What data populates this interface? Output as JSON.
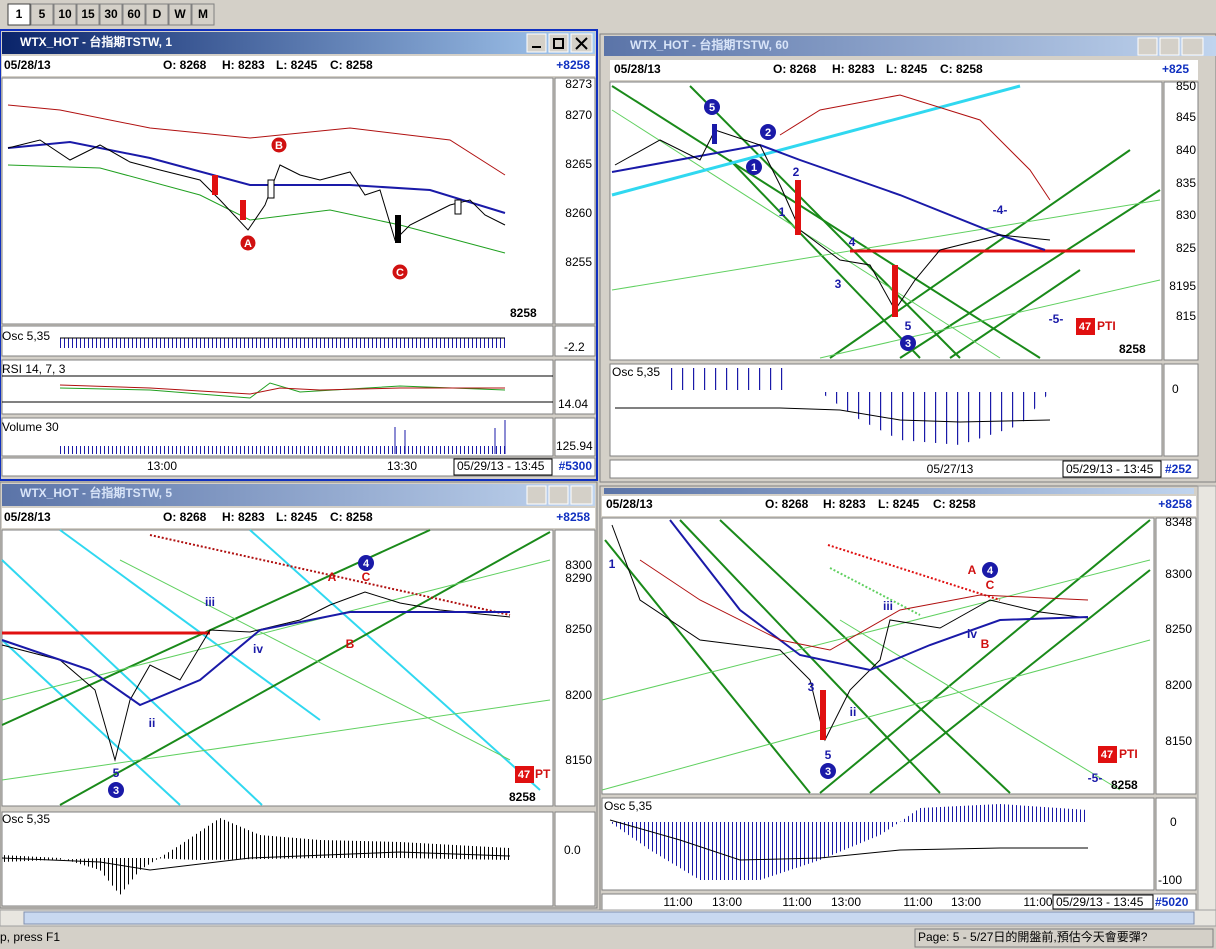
{
  "toolbar": {
    "buttons": [
      "1",
      "5",
      "10",
      "15",
      "30",
      "60",
      "D",
      "W",
      "M"
    ]
  },
  "windows": [
    {
      "title": "WTX_HOT - 台指期TSTW, 1",
      "header": {
        "date": "05/28/13",
        "open": "O: 8268",
        "high": "H: 8283",
        "low": "L: 8245",
        "close": "C: 8258",
        "change": "+8258"
      },
      "price_axis": [
        "8273",
        "8270",
        "8265",
        "8260",
        "8255"
      ],
      "last_price": "8258",
      "panes": [
        {
          "label": "Osc 5,35",
          "value": "-2.2"
        },
        {
          "label": "RSI 14, 7, 3",
          "value": "14.04"
        },
        {
          "label": "Volume 30",
          "value": "125.94"
        }
      ],
      "time_axis": [
        "13:00",
        "13:30"
      ],
      "range": "05/29/13 - 13:45",
      "bar_count": "#5300",
      "annotations": [
        "B",
        "A",
        "C"
      ]
    },
    {
      "title": "WTX_HOT - 台指期TSTW, 60",
      "header": {
        "date": "05/28/13",
        "open": "O: 8268",
        "high": "H: 8283",
        "low": "L: 8245",
        "close": "C: 8258",
        "change": "+825"
      },
      "price_axis": [
        "850",
        "845",
        "840",
        "835",
        "830",
        "825",
        "8195",
        "815"
      ],
      "last_price": "8258",
      "pti": {
        "value": "47",
        "label": "PTI"
      },
      "panes": [
        {
          "label": "Osc 5,35",
          "value": "0"
        }
      ],
      "time_axis": [
        "05/27/13"
      ],
      "range": "05/29/13 - 13:45",
      "bar_count": "#252",
      "annotations": [
        "5",
        "2",
        "1",
        "2",
        "1",
        "4",
        "3",
        "5",
        "3",
        "-4-",
        "-5-"
      ]
    },
    {
      "title": "WTX_HOT - 台指期TSTW, 5",
      "header": {
        "date": "05/28/13",
        "open": "O: 8268",
        "high": "H: 8283",
        "low": "L: 8245",
        "close": "C: 8258",
        "change": "+8258"
      },
      "price_axis": [
        "8300",
        "8290",
        "8250",
        "8200",
        "8150"
      ],
      "last_price": "8258",
      "pti": {
        "value": "47",
        "label": "PT"
      },
      "panes": [
        {
          "label": "Osc 5,35",
          "value": "0.0"
        }
      ],
      "annotations": [
        "4",
        "A",
        "C",
        "iii",
        "iv",
        "B",
        "ii",
        "5",
        "3"
      ]
    },
    {
      "header": {
        "date": "05/28/13",
        "open": "O: 8268",
        "high": "H: 8283",
        "low": "L: 8245",
        "close": "C: 8258",
        "change": "+8258"
      },
      "price_axis": [
        "8348",
        "8300",
        "8250",
        "8200",
        "8150"
      ],
      "last_price": "8258",
      "pti": {
        "value": "47",
        "label": "PTI"
      },
      "panes": [
        {
          "label": "Osc 5,35",
          "value": "0",
          "min": "-100"
        }
      ],
      "time_axis": [
        "11:00",
        "13:00",
        "11:00",
        "13:00",
        "11:00",
        "13:00",
        "11:00"
      ],
      "range": "05/29/13 - 13:45",
      "bar_count": "#5020",
      "annotations": [
        "1",
        "A",
        "4",
        "C",
        "iii",
        "iv",
        "B",
        "3",
        "ii",
        "5",
        "3",
        "-5-"
      ]
    }
  ],
  "status": {
    "help": "p, press F1",
    "page": "Page: 5 - 5/27日的開盤前,預估今天會要彈?"
  }
}
